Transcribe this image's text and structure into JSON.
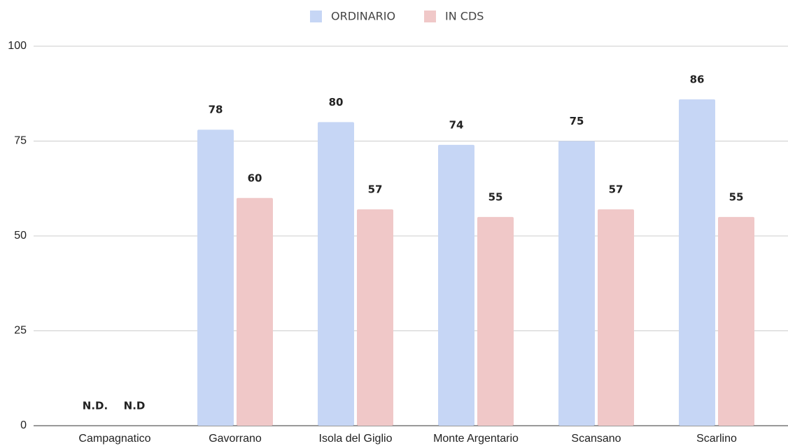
{
  "chart_data": {
    "type": "bar",
    "categories": [
      "Campagnatico",
      "Gavorrano",
      "Isola del Giglio",
      "Monte Argentario",
      "Scansano",
      "Scarlino"
    ],
    "series": [
      {
        "name": "ORDINARIO",
        "color": "#c6d6f5",
        "values": [
          null,
          78,
          80,
          74,
          75,
          86
        ],
        "value_labels": [
          "N.D.",
          "78",
          "80",
          "74",
          "75",
          "86"
        ]
      },
      {
        "name": "IN CDS",
        "color": "#f0c8c8",
        "values": [
          null,
          60,
          57,
          55,
          57,
          55
        ],
        "value_labels": [
          "N.D",
          "60",
          "57",
          "55",
          "57",
          "55"
        ]
      }
    ],
    "ylim": [
      0,
      100
    ],
    "yticks": [
      0,
      25,
      50,
      75,
      100
    ],
    "grid": true,
    "legend": "top"
  }
}
